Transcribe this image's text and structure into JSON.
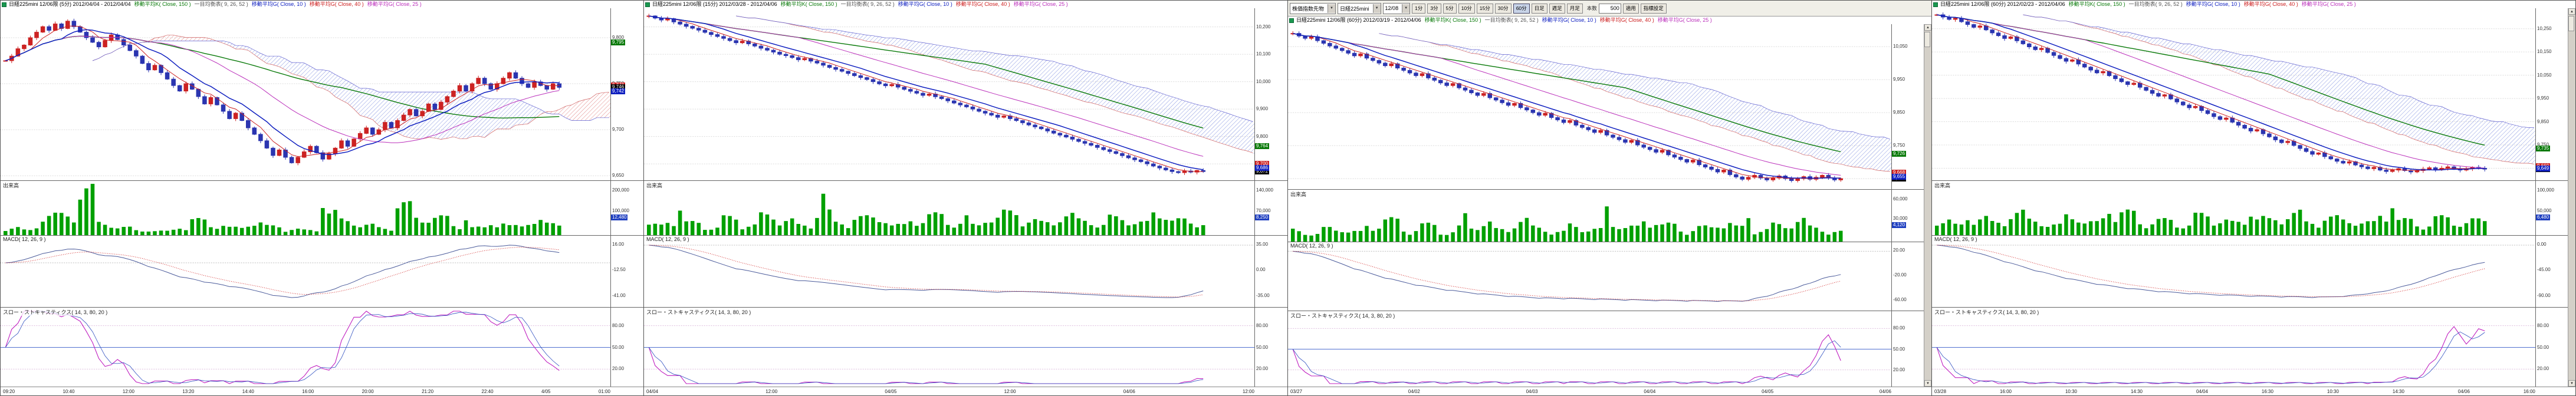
{
  "app": {
    "background": "#ffffff",
    "border_color": "#555555"
  },
  "shared": {
    "up_candle_color": "#cc2222",
    "down_candle_color": "#2b35b0",
    "volume_color": "#00a000",
    "ma_fast_color": "#cc2020",
    "ma_mid_color": "#1020c0",
    "ma_extra_color": "#bb30bb",
    "ma_slow_color": "#0a7a0a",
    "volume_tag_color": "#2040c0"
  },
  "panels": [
    {
      "header": {
        "title": "日経225mini 12/06限 (5分) 2012/04/04 - 2012/04/04",
        "indicators": [
          {
            "text": "移動平均K( Close, 150 )",
            "color": "#0a7a0a"
          },
          {
            "text": "一目均衡表( 9, 26, 52 )",
            "color": "#555555"
          },
          {
            "text": "移動平均G( Close, 10 )",
            "color": "#1020c0"
          },
          {
            "text": "移動平均G( Close, 40 )",
            "color": "#cc2020"
          },
          {
            "text": "移動平均G( Close, 25 )",
            "color": "#bb30bb"
          }
        ]
      },
      "pane_labels": {
        "volume": "出来高",
        "macd": "MACD( 12, 26, 9 )",
        "stoch": "スロー・ストキャスティクス( 14, 3, 80, 20 )"
      },
      "price_axis": [
        "9,800",
        "9,750",
        "9,700",
        "9,650"
      ],
      "volume_axis": [
        "200,000",
        "100,000"
      ],
      "volume_tag": "12,480",
      "macd_axis": [
        "16.00",
        "-12.50",
        "-41.00"
      ],
      "stoch_axis": [
        "80.00",
        "50.00",
        "20.00"
      ],
      "price_tags": [
        {
          "color": "#0a7a0a",
          "text": "9,795",
          "v": 9795
        },
        {
          "color": "#cc2020",
          "text": "9,748",
          "v": 9748
        },
        {
          "color": "#000000",
          "text": "9,746",
          "v": 9746
        },
        {
          "color": "#1020c0",
          "text": "9,742",
          "v": 9742
        }
      ],
      "time_labels": [
        "09:20",
        "10:40",
        "12:00",
        "13:20",
        "14:40",
        "16:00",
        "20:00",
        "21:20",
        "22:40",
        "4/05",
        "01:00"
      ],
      "scrollbar": false,
      "chart_data": {
        "type": "candlestick",
        "ylim": [
          9645,
          9832
        ],
        "close": [
          9775,
          9780,
          9788,
          9792,
          9800,
          9806,
          9812,
          9808,
          9815,
          9810,
          9818,
          9812,
          9806,
          9800,
          9795,
          9790,
          9797,
          9803,
          9798,
          9792,
          9786,
          9780,
          9772,
          9765,
          9770,
          9762,
          9755,
          9748,
          9742,
          9750,
          9744,
          9736,
          9728,
          9735,
          9727,
          9720,
          9712,
          9718,
          9710,
          9702,
          9695,
          9688,
          9680,
          9672,
          9678,
          9670,
          9664,
          9670,
          9676,
          9682,
          9675,
          9668,
          9674,
          9680,
          9688,
          9682,
          9690,
          9696,
          9702,
          9695,
          9700,
          9708,
          9702,
          9710,
          9716,
          9722,
          9715,
          9720,
          9728,
          9722,
          9730,
          9736,
          9742,
          9748,
          9742,
          9750,
          9756,
          9750,
          9744,
          9750,
          9756,
          9762,
          9756,
          9750,
          9746,
          9752,
          9748,
          9744,
          9750,
          9746
        ],
        "volume_profile": [
          15,
          10,
          40,
          40,
          90,
          25,
          15,
          10,
          8,
          12,
          30,
          20,
          15,
          25,
          18,
          12,
          10,
          45,
          30,
          20,
          15,
          60,
          35,
          35,
          20,
          15,
          25,
          18,
          30,
          22
        ]
      }
    },
    {
      "header": {
        "title": "日経225mini 12/06限 (15分) 2012/03/28 - 2012/04/06",
        "indicators": [
          {
            "text": "移動平均K( Close, 150 )",
            "color": "#0a7a0a"
          },
          {
            "text": "一目均衡表( 9, 26, 52 )",
            "color": "#555555"
          },
          {
            "text": "移動平均G( Close, 10 )",
            "color": "#1020c0"
          },
          {
            "text": "移動平均G( Close, 40 )",
            "color": "#cc2020"
          },
          {
            "text": "移動平均G( Close, 25 )",
            "color": "#bb30bb"
          }
        ]
      },
      "pane_labels": {
        "volume": "出来高",
        "macd": "MACD( 12, 26, 9 )",
        "stoch": "スロー・ストキャスティクス( 14, 3, 80, 20 )"
      },
      "price_axis": [
        "10,200",
        "10,100",
        "10,000",
        "9,900",
        "9,800",
        "9,700"
      ],
      "volume_axis": [
        "140,000",
        "70,000"
      ],
      "volume_tag": "8,250",
      "macd_axis": [
        "35.00",
        "0.00",
        "-35.00"
      ],
      "stoch_axis": [
        "80.00",
        "50.00",
        "20.00"
      ],
      "price_tags": [
        {
          "color": "#0a7a0a",
          "text": "9,764",
          "v": 9764
        },
        {
          "color": "#cc2020",
          "text": "9,700",
          "v": 9700
        },
        {
          "color": "#000000",
          "text": "9,672",
          "v": 9672
        },
        {
          "color": "#1020c0",
          "text": "9,686",
          "v": 9686
        }
      ],
      "time_labels": [
        "04/04",
        "12:00",
        "04/05",
        "12:00",
        "04/06",
        "12:00"
      ],
      "scrollbar": false,
      "chart_data": {
        "type": "candlestick",
        "ylim": [
          9640,
          10268
        ],
        "close": [
          10240,
          10232,
          10225,
          10230,
          10218,
          10210,
          10202,
          10195,
          10188,
          10180,
          10172,
          10165,
          10158,
          10150,
          10142,
          10148,
          10138,
          10130,
          10122,
          10115,
          10108,
          10100,
          10095,
          10088,
          10080,
          10085,
          10075,
          10068,
          10060,
          10052,
          10045,
          10038,
          10030,
          10022,
          10015,
          10008,
          10000,
          9992,
          9985,
          9990,
          9980,
          9972,
          9965,
          9958,
          9950,
          9955,
          9945,
          9938,
          9930,
          9922,
          9915,
          9908,
          9900,
          9892,
          9885,
          9878,
          9870,
          9875,
          9865,
          9858,
          9850,
          9842,
          9835,
          9828,
          9820,
          9812,
          9805,
          9798,
          9790,
          9782,
          9775,
          9768,
          9760,
          9752,
          9745,
          9738,
          9730,
          9722,
          9715,
          9708,
          9700,
          9692,
          9685,
          9678,
          9672,
          9668,
          9674,
          9670,
          9676,
          9672
        ],
        "volume_profile": [
          20,
          30,
          25,
          15,
          35,
          20,
          40,
          30,
          20,
          45,
          25,
          35,
          35,
          20,
          30,
          40,
          25,
          20,
          35,
          45,
          30,
          25,
          40,
          30,
          20,
          35,
          25,
          45,
          30,
          25
        ]
      }
    },
    {
      "toolbar": {
        "market_select": "株価指数先物",
        "symbol_select": "日経225mini",
        "contract_select": "12/08",
        "periods": [
          "1分",
          "3分",
          "5分",
          "10分",
          "15分",
          "30分",
          "60分",
          "日足",
          "週足",
          "月足"
        ],
        "active_period": "60分",
        "bars_label": "本数",
        "bars_value": "500",
        "apply_button": "適用",
        "settings_button": "指標設定"
      },
      "header": {
        "title": "日経225mini 12/06限 (60分) 2012/03/19 - 2012/04/06",
        "indicators": [
          {
            "text": "移動平均K( Close, 150 )",
            "color": "#0a7a0a"
          },
          {
            "text": "一目均衡表( 9, 26, 52 )",
            "color": "#555555"
          },
          {
            "text": "移動平均G( Close, 10 )",
            "color": "#1020c0"
          },
          {
            "text": "移動平均G( Close, 40 )",
            "color": "#cc2020"
          },
          {
            "text": "移動平均G( Close, 25 )",
            "color": "#bb30bb"
          }
        ]
      },
      "pane_labels": {
        "volume": "出来高",
        "macd": "MACD( 12, 26, 9 )",
        "stoch": "スロー・ストキャスティクス( 14, 3, 80, 20 )"
      },
      "price_axis": [
        "10,050",
        "9,950",
        "9,850",
        "9,750",
        "9,650"
      ],
      "volume_axis": [
        "60,000",
        "30,000"
      ],
      "volume_tag": "4,120",
      "macd_axis": [
        "20.00",
        "-20.00",
        "-60.00"
      ],
      "stoch_axis": [
        "80.00",
        "50.00",
        "20.00"
      ],
      "price_tags": [
        {
          "color": "#0a7a0a",
          "text": "9,726",
          "v": 9726
        },
        {
          "color": "#cc2020",
          "text": "9,668",
          "v": 9668
        },
        {
          "color": "#000000",
          "text": "9,650",
          "v": 9650
        },
        {
          "color": "#1020c0",
          "text": "9,655",
          "v": 9655
        }
      ],
      "time_labels": [
        "03/27",
        "04/02",
        "04/03",
        "04/04",
        "04/05",
        "04/06"
      ],
      "scrollbar": true,
      "chart_data": {
        "type": "candlestick",
        "ylim": [
          9618,
          10118
        ],
        "close": [
          10090,
          10082,
          10075,
          10080,
          10068,
          10060,
          10052,
          10045,
          10038,
          10030,
          10022,
          10028,
          10015,
          10008,
          10000,
          9992,
          9998,
          9985,
          9978,
          9970,
          9962,
          9968,
          9955,
          9948,
          9940,
          9932,
          9938,
          9925,
          9918,
          9910,
          9902,
          9908,
          9895,
          9888,
          9880,
          9872,
          9878,
          9865,
          9858,
          9850,
          9842,
          9848,
          9835,
          9828,
          9820,
          9826,
          9812,
          9805,
          9798,
          9790,
          9796,
          9782,
          9775,
          9768,
          9760,
          9766,
          9752,
          9745,
          9738,
          9730,
          9736,
          9722,
          9715,
          9708,
          9700,
          9706,
          9692,
          9685,
          9678,
          9670,
          9676,
          9662,
          9655,
          9648,
          9654,
          9660,
          9652,
          9646,
          9652,
          9658,
          9650,
          9644,
          9650,
          9656,
          9648,
          9654,
          9660,
          9652,
          9646,
          9650
        ],
        "volume_profile": [
          25,
          15,
          30,
          20,
          35,
          45,
          25,
          35,
          20,
          30,
          40,
          25,
          45,
          30,
          20,
          35,
          25,
          40,
          30,
          45,
          35,
          25,
          30,
          40,
          30,
          25,
          35,
          45,
          30,
          20
        ]
      }
    },
    {
      "header": {
        "title": "日経225mini 12/06限 (60分) 2012/02/23 - 2012/04/06",
        "indicators": [
          {
            "text": "移動平均K( Close, 150 )",
            "color": "#0a7a0a"
          },
          {
            "text": "一目均衡表( 9, 26, 52 )",
            "color": "#555555"
          },
          {
            "text": "移動平均G( Close, 10 )",
            "color": "#1020c0"
          },
          {
            "text": "移動平均G( Close, 40 )",
            "color": "#cc2020"
          },
          {
            "text": "移動平均G( Close, 25 )",
            "color": "#bb30bb"
          }
        ]
      },
      "pane_labels": {
        "volume": "出来高",
        "macd": "MACD( 12, 26, 9 )",
        "stoch": "スロー・ストキャスティクス( 14, 3, 80, 20 )"
      },
      "price_axis": [
        "10,250",
        "10,150",
        "10,050",
        "9,950",
        "9,850",
        "9,750",
        "9,650"
      ],
      "volume_axis": [
        "100,000",
        "50,000"
      ],
      "volume_tag": "6,480",
      "macd_axis": [
        "0.00",
        "-45.00",
        "-90.00"
      ],
      "stoch_axis": [
        "80.00",
        "50.00",
        "20.00"
      ],
      "price_tags": [
        {
          "color": "#0a7a0a",
          "text": "9,735",
          "v": 9735
        },
        {
          "color": "#cc2020",
          "text": "9,660",
          "v": 9660
        },
        {
          "color": "#000000",
          "text": "9,646",
          "v": 9646
        },
        {
          "color": "#1020c0",
          "text": "9,649",
          "v": 9649
        }
      ],
      "time_labels": [
        "03/28",
        "16:00",
        "10:30",
        "14:30",
        "04/04",
        "16:30",
        "10:30",
        "14:30",
        "04/06",
        "16:00"
      ],
      "scrollbar": true,
      "chart_data": {
        "type": "candlestick",
        "ylim": [
          9598,
          10338
        ],
        "close": [
          10310,
          10300,
          10290,
          10295,
          10280,
          10268,
          10256,
          10262,
          10245,
          10232,
          10220,
          10208,
          10215,
          10198,
          10185,
          10172,
          10160,
          10166,
          10148,
          10135,
          10122,
          10110,
          10116,
          10098,
          10085,
          10072,
          10060,
          10066,
          10048,
          10035,
          10022,
          10010,
          10016,
          9998,
          9985,
          9972,
          9960,
          9966,
          9948,
          9935,
          9922,
          9910,
          9916,
          9898,
          9885,
          9872,
          9860,
          9866,
          9848,
          9835,
          9822,
          9810,
          9816,
          9798,
          9785,
          9772,
          9760,
          9766,
          9748,
          9735,
          9722,
          9710,
          9716,
          9700,
          9690,
          9680,
          9672,
          9678,
          9664,
          9656,
          9648,
          9654,
          9642,
          9636,
          9642,
          9648,
          9640,
          9634,
          9640,
          9646,
          9652,
          9644,
          9650,
          9656,
          9648,
          9642,
          9648,
          9654,
          9650,
          9646
        ],
        "volume_profile": [
          30,
          20,
          35,
          25,
          45,
          30,
          20,
          40,
          25,
          35,
          45,
          25,
          30,
          20,
          40,
          30,
          25,
          35,
          30,
          45,
          25,
          35,
          30,
          25,
          40,
          30,
          20,
          35,
          25,
          30
        ]
      }
    }
  ]
}
